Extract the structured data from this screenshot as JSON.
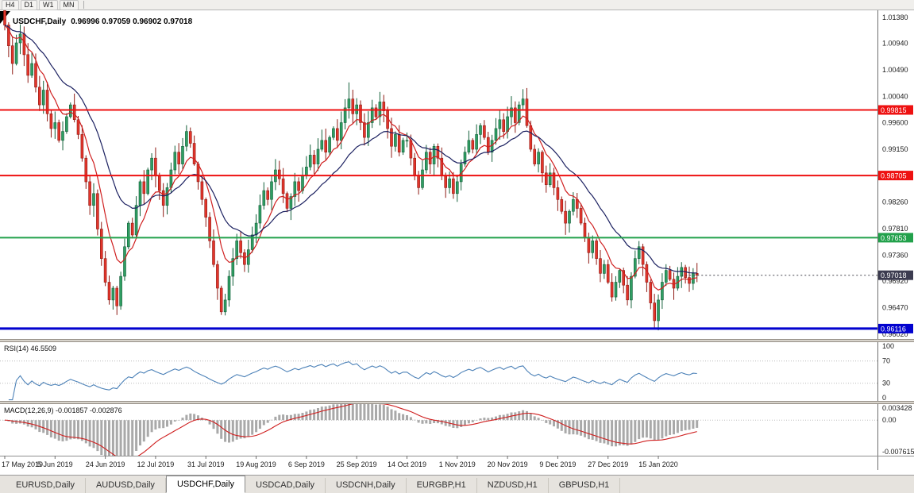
{
  "toolbar": {
    "timeframes": [
      "H4",
      "D1",
      "W1",
      "MN"
    ]
  },
  "chart": {
    "title_symbol": "USDCHF,Daily",
    "title_ohlc": "0.96996 0.97059 0.96902 0.97018"
  },
  "indicators": {
    "rsi_label": "RSI(14) 46.5509",
    "macd_label": "MACD(12,26,9) -0.001857 -0.002876"
  },
  "tabs": {
    "active_index": 2,
    "items": [
      "EURUSD,Daily",
      "AUDUSD,Daily",
      "USDCHF,Daily",
      "USDCAD,Daily",
      "USDCNH,Daily",
      "EURGBP,H1",
      "NZDUSD,H1",
      "GBPUSD,H1"
    ]
  },
  "chart_data": {
    "type": "candlestick",
    "symbol": "USDCHF",
    "timeframe": "Daily",
    "x_label_step": 13,
    "x_labels": [
      "17 May 2019",
      "5 Jun 2019",
      "24 Jun 2019",
      "12 Jul 2019",
      "31 Jul 2019",
      "19 Aug 2019",
      "6 Sep 2019",
      "25 Sep 2019",
      "14 Oct 2019",
      "1 Nov 2019",
      "20 Nov 2019",
      "9 Dec 2019",
      "27 Dec 2019",
      "15 Jan 2020"
    ],
    "price_panel": {
      "type": "candlestick",
      "ylim": [
        0.9594,
        1.015
      ],
      "y_ticks": [
        "1.01380",
        "1.00940",
        "1.00490",
        "1.00040",
        "0.99600",
        "0.99150",
        "0.98700",
        "0.98260",
        "0.97810",
        "0.97360",
        "0.96920",
        "0.96470",
        "0.96020"
      ],
      "up_color": "#2f9e63",
      "up_border": "#14603a",
      "down_color": "#e3352b",
      "down_border": "#8f1b14",
      "closes": [
        1.0125,
        1.009,
        1.006,
        1.0095,
        1.011,
        1.0075,
        1.004,
        1.006,
        1.002,
        0.999,
        1.0015,
        0.9975,
        0.995,
        0.996,
        0.993,
        0.9945,
        0.997,
        0.999,
        0.9965,
        0.994,
        0.99,
        0.986,
        0.982,
        0.984,
        0.978,
        0.973,
        0.969,
        0.966,
        0.968,
        0.965,
        0.97,
        0.975,
        0.979,
        0.977,
        0.982,
        0.986,
        0.984,
        0.988,
        0.99,
        0.987,
        0.9845,
        0.982,
        0.985,
        0.988,
        0.991,
        0.989,
        0.992,
        0.9945,
        0.9925,
        0.989,
        0.986,
        0.983,
        0.98,
        0.976,
        0.972,
        0.968,
        0.964,
        0.966,
        0.97,
        0.973,
        0.976,
        0.974,
        0.972,
        0.9745,
        0.977,
        0.979,
        0.982,
        0.9845,
        0.983,
        0.986,
        0.988,
        0.9865,
        0.984,
        0.9815,
        0.9835,
        0.986,
        0.9845,
        0.987,
        0.9885,
        0.9905,
        0.989,
        0.9915,
        0.993,
        0.991,
        0.9935,
        0.995,
        0.993,
        0.996,
        0.9985,
        1.0,
        0.9975,
        0.999,
        0.996,
        0.9935,
        0.996,
        0.9985,
        0.997,
        0.9995,
        0.998,
        0.995,
        0.992,
        0.994,
        0.991,
        0.993,
        0.993,
        0.99,
        0.987,
        0.985,
        0.988,
        0.991,
        0.989,
        0.992,
        0.99,
        0.987,
        0.985,
        0.9865,
        0.984,
        0.986,
        0.989,
        0.991,
        0.993,
        0.9915,
        0.994,
        0.9955,
        0.9935,
        0.991,
        0.993,
        0.995,
        0.9965,
        0.9945,
        0.997,
        0.9985,
        0.996,
        0.999,
        1.0,
        0.9955,
        0.9915,
        0.989,
        0.991,
        0.9875,
        0.9855,
        0.9875,
        0.985,
        0.983,
        0.981,
        0.979,
        0.981,
        0.983,
        0.9815,
        0.979,
        0.9765,
        0.974,
        0.976,
        0.973,
        0.9705,
        0.972,
        0.969,
        0.9665,
        0.969,
        0.971,
        0.9685,
        0.966,
        0.97,
        0.973,
        0.975,
        0.972,
        0.969,
        0.9655,
        0.9625,
        0.966,
        0.969,
        0.971,
        0.9695,
        0.968,
        0.97,
        0.9715,
        0.9698,
        0.9688,
        0.9705,
        0.97018
      ],
      "wick_overrides": {
        "89": {
          "high": 1.0028
        },
        "168": {
          "low": 0.96116
        }
      },
      "moving_averages": [
        {
          "period": 8,
          "color": "#cf1f1f",
          "name": "ma-fast-red"
        },
        {
          "period": 21,
          "color": "#1b2060",
          "name": "ma-slow-navy"
        }
      ],
      "levels": [
        {
          "name": "resistance-level-1",
          "value": 0.99815,
          "label": "0.99815",
          "color": "#ee1111",
          "width": 2
        },
        {
          "name": "resistance-level-2",
          "value": 0.98705,
          "label": "0.98705",
          "color": "#ee1111",
          "width": 2
        },
        {
          "name": "support-level-green",
          "value": 0.97653,
          "label": "0.97653",
          "color": "#22a14b",
          "width": 2
        },
        {
          "name": "support-level-blue",
          "value": 0.96116,
          "label": "0.96116",
          "color": "#0202cf",
          "width": 3
        }
      ],
      "current_price": {
        "value": 0.97018,
        "label": "0.97018",
        "bg": "#3c3c50"
      }
    },
    "rsi_panel": {
      "type": "line",
      "name": "RSI(14)",
      "period": 14,
      "value": "46.5509",
      "color": "#4d82b8",
      "ylim": [
        -2,
        104
      ],
      "levels": [
        70,
        30
      ],
      "y_ticks": [
        {
          "v": 100,
          "label": "100"
        },
        {
          "v": 70,
          "label": "70"
        },
        {
          "v": 30,
          "label": "30"
        },
        {
          "v": 0,
          "label": "0"
        }
      ]
    },
    "macd_panel": {
      "type": "histogram+line",
      "name": "MACD(12,26,9)",
      "values": "-0.001857 -0.002876",
      "fast": 12,
      "slow": 26,
      "signal": 9,
      "histogram_color": "#a9a9a9",
      "signal_color": "#cf1f1f",
      "ylim": [
        -0.007615,
        0.003428
      ],
      "y_ticks": [
        {
          "v": 0.003428,
          "label": "0.003428"
        },
        {
          "v": 0,
          "label": "0.00"
        },
        {
          "v": -0.007615,
          "label": "-0.007615"
        }
      ]
    }
  }
}
